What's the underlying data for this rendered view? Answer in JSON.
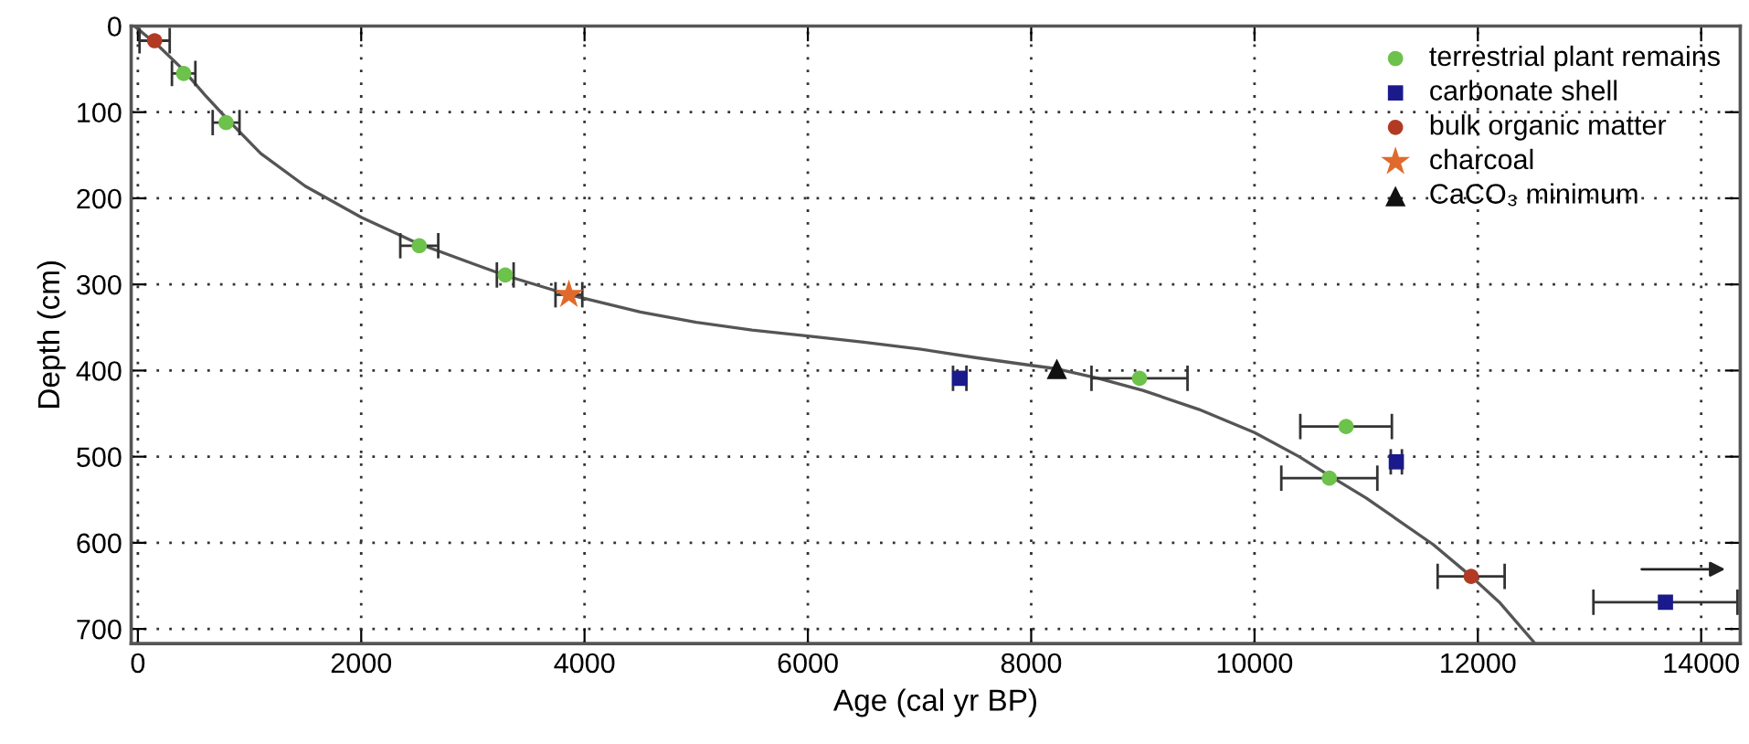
{
  "chart_data": {
    "type": "scatter",
    "xlabel": "Age (cal yr BP)",
    "ylabel": "Depth (cm)",
    "xlim": [
      -60,
      14350
    ],
    "ylim": [
      717,
      0
    ],
    "xticks": [
      0,
      2000,
      4000,
      6000,
      8000,
      10000,
      12000,
      14000
    ],
    "yticks": [
      0,
      100,
      200,
      300,
      400,
      500,
      600,
      700
    ],
    "grid": true,
    "legend": "top right",
    "series": [
      {
        "name": "terrestrial plant remains",
        "color": "#6cc24a",
        "marker": "circle",
        "x": [
          410,
          790,
          2520,
          3290,
          8970,
          10820,
          10670
        ],
        "values": [
          55,
          112,
          255,
          289,
          409,
          465,
          525
        ],
        "xerrors": [
          105,
          120,
          170,
          75,
          430,
          410,
          430
        ]
      },
      {
        "name": "carbonate shell",
        "color": "#1a1a8c",
        "marker": "square",
        "x": [
          7360,
          11270,
          13680
        ],
        "values": [
          409,
          506,
          669
        ],
        "xerrors": [
          60,
          50,
          645
        ]
      },
      {
        "name": "bulk organic matter",
        "color": "#b23a24",
        "marker": "circle",
        "x": [
          150,
          11940
        ],
        "values": [
          17,
          639
        ],
        "xerrors": [
          135,
          300
        ]
      },
      {
        "name": "charcoal",
        "color": "#e06a2c",
        "marker": "star",
        "x": [
          3860
        ],
        "values": [
          312
        ],
        "xerrors": [
          120
        ]
      },
      {
        "name": "CaCO₃ minimum",
        "color": "#111111",
        "marker": "triangle",
        "x": [
          8230
        ],
        "values": [
          398
        ]
      },
      {
        "type": "line",
        "color": "#555555",
        "x": [
          -30,
          200,
          400,
          600,
          800,
          1100,
          1500,
          2000,
          2500,
          3000,
          3300,
          3860,
          4500,
          5000,
          5500,
          6000,
          6500,
          7000,
          7500,
          8000,
          8230,
          8600,
          9000,
          9500,
          10000,
          10400,
          10670,
          11000,
          11300,
          11600,
          11940,
          12200,
          12500
        ],
        "values": [
          0,
          25,
          50,
          80,
          108,
          148,
          186,
          222,
          252,
          276,
          290,
          312,
          332,
          344,
          353,
          360,
          367,
          375,
          385,
          394,
          398,
          409,
          423,
          445,
          472,
          500,
          522,
          548,
          575,
          602,
          639,
          670,
          715
        ]
      }
    ]
  }
}
